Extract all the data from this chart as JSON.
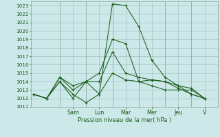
{
  "bg_color": "#cce8e8",
  "grid_color": "#99bbbb",
  "line_color": "#1a5c1a",
  "ylabel": "Pression niveau de la mer( hPa )",
  "ylim": [
    1011,
    1023.5
  ],
  "yticks": [
    1011,
    1012,
    1013,
    1014,
    1015,
    1016,
    1017,
    1018,
    1019,
    1020,
    1021,
    1022,
    1023
  ],
  "ytick_fontsize": 5.2,
  "xtick_fontsize": 5.8,
  "xlabel_fontsize": 6.0,
  "x_day_labels": [
    "Sam",
    "Lun",
    "Mar",
    "Mer",
    "Jeu",
    "V"
  ],
  "x_day_positions": [
    3,
    5,
    7,
    9,
    11,
    13
  ],
  "x_vline_positions": [
    2,
    4,
    6,
    8,
    10,
    12
  ],
  "xlim": [
    -0.2,
    14.0
  ],
  "series": [
    {
      "x": [
        0,
        1,
        2,
        3,
        4,
        5,
        6,
        7,
        8,
        9,
        10,
        11,
        12,
        13
      ],
      "y": [
        1012.5,
        1012.0,
        1014.0,
        1012.5,
        1011.5,
        1012.5,
        1023.2,
        1023.0,
        1020.5,
        1016.5,
        1014.5,
        1013.5,
        1013.2,
        1012.0
      ]
    },
    {
      "x": [
        0,
        1,
        2,
        3,
        4,
        5,
        6,
        7,
        8,
        9,
        10,
        11,
        12,
        13
      ],
      "y": [
        1012.5,
        1012.0,
        1014.5,
        1013.0,
        1014.0,
        1015.0,
        1019.0,
        1018.5,
        1014.0,
        1014.2,
        1014.0,
        1013.5,
        1012.5,
        1012.0
      ]
    },
    {
      "x": [
        0,
        1,
        2,
        3,
        4,
        5,
        6,
        7,
        8,
        9,
        10,
        11,
        12,
        13
      ],
      "y": [
        1012.5,
        1012.0,
        1014.5,
        1013.5,
        1014.0,
        1014.0,
        1017.5,
        1015.0,
        1014.5,
        1014.2,
        1014.0,
        1013.2,
        1012.5,
        1012.0
      ]
    },
    {
      "x": [
        0,
        1,
        2,
        3,
        4,
        5,
        6,
        7,
        8,
        9,
        10,
        11,
        12,
        13
      ],
      "y": [
        1012.5,
        1012.0,
        1014.0,
        1012.0,
        1014.0,
        1012.5,
        1015.0,
        1014.2,
        1014.0,
        1013.5,
        1013.0,
        1013.0,
        1013.0,
        1012.0
      ]
    }
  ]
}
